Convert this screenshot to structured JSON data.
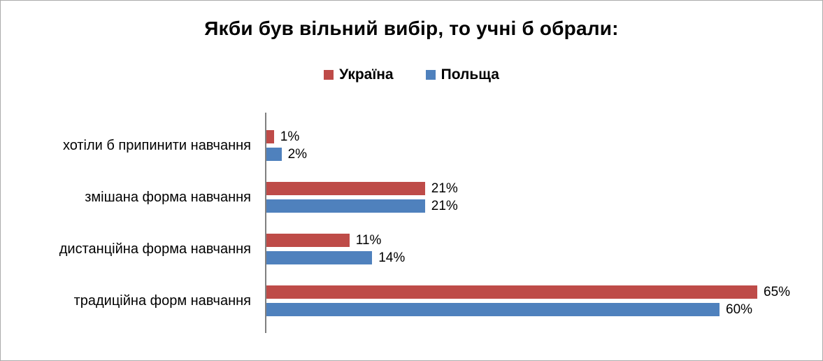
{
  "window": {
    "background": "#ffffff",
    "border_color": "#ababab"
  },
  "chart_data": {
    "type": "bar",
    "orientation": "horizontal",
    "title": "Якби був вільний вибір, то учні б обрали:",
    "categories": [
      "хотіли б припинити навчання",
      "змішана форма навчання",
      "дистанційна форма навчання",
      "традиційна форм навчання"
    ],
    "categories_order": "top_to_bottom",
    "series": [
      {
        "name": "Україна",
        "color": "#be4b48",
        "values": [
          1,
          21,
          11,
          65
        ]
      },
      {
        "name": "Польща",
        "color": "#4f81bd",
        "values": [
          2,
          21,
          14,
          60
        ]
      }
    ],
    "value_suffix": "%",
    "data_labels": true,
    "grid": false,
    "legend_position": "top",
    "axis_color": "#7f7f7f",
    "xlim": [
      0,
      70
    ]
  }
}
